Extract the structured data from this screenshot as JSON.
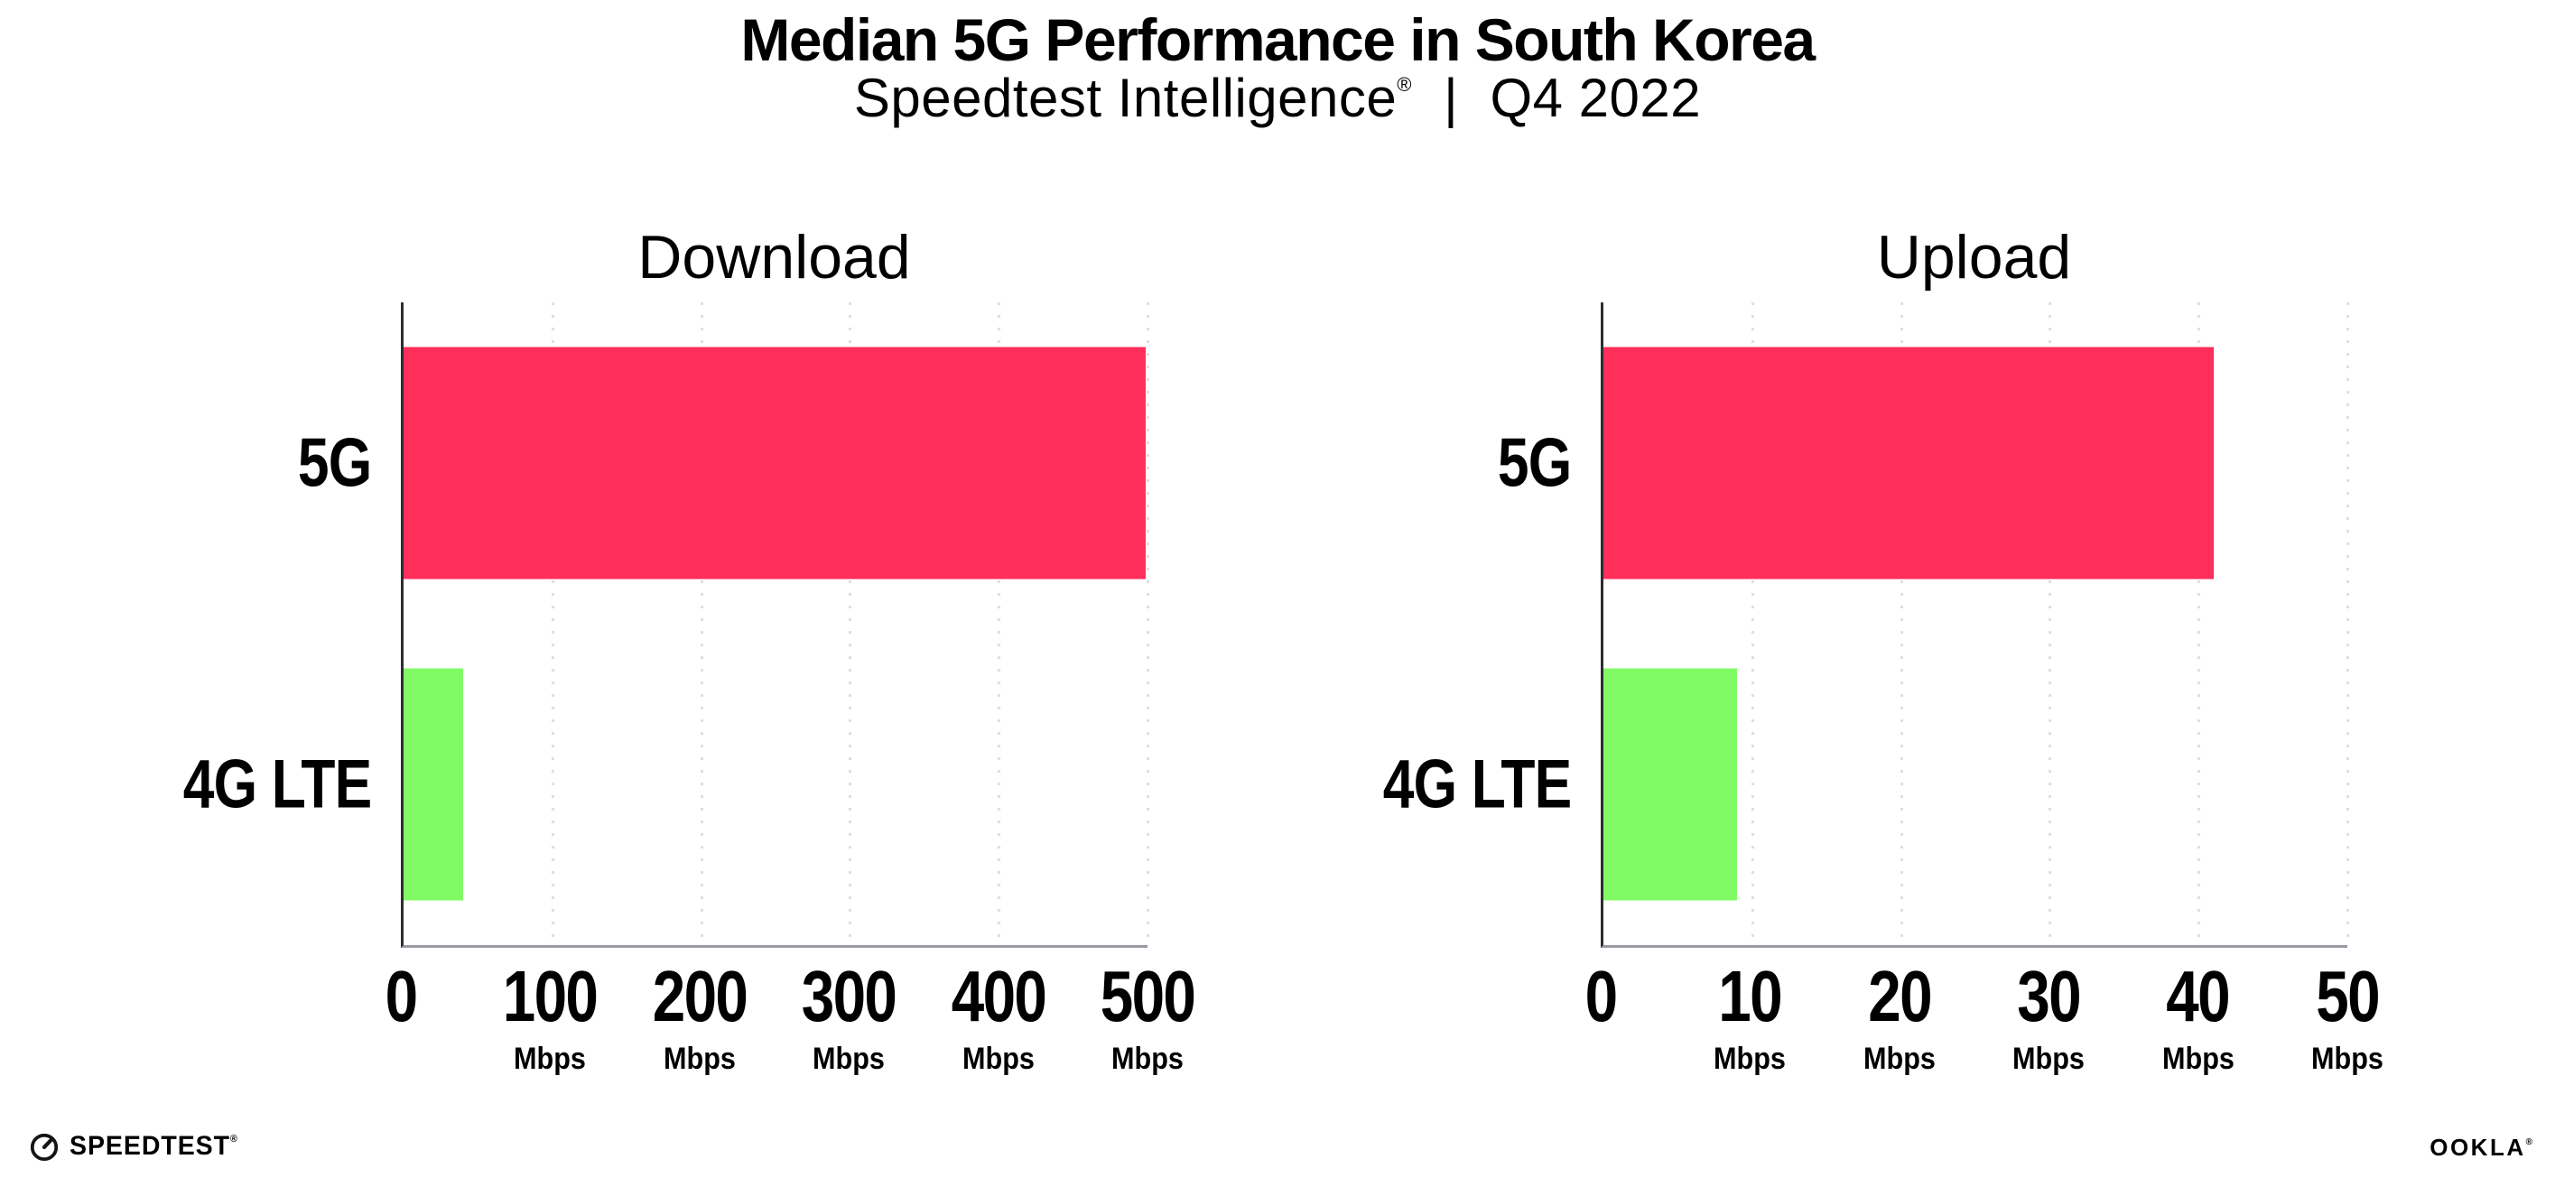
{
  "header": {
    "title": "Median 5G Performance in South Korea",
    "subtitle_brand": "Speedtest Intelligence",
    "subtitle_reg": "®",
    "subtitle_separator": "|",
    "subtitle_period": "Q4 2022"
  },
  "chart_data": [
    {
      "type": "bar",
      "orientation": "horizontal",
      "title": "Download",
      "categories": [
        "5G",
        "4G LTE"
      ],
      "values": [
        499,
        40
      ],
      "unit": "Mbps",
      "xlim": [
        0,
        500
      ],
      "xticks": [
        0,
        100,
        200,
        300,
        400,
        500
      ],
      "colors": [
        "#FF2E5B",
        "#80FB66"
      ],
      "grid": "dotted-vertical",
      "legend": "none"
    },
    {
      "type": "bar",
      "orientation": "horizontal",
      "title": "Upload",
      "categories": [
        "5G",
        "4G LTE"
      ],
      "values": [
        41,
        9
      ],
      "unit": "Mbps",
      "xlim": [
        0,
        50
      ],
      "xticks": [
        0,
        10,
        20,
        30,
        40,
        50
      ],
      "colors": [
        "#FF2E5B",
        "#80FB66"
      ],
      "grid": "dotted-vertical",
      "legend": "none"
    }
  ],
  "footer": {
    "speedtest_label": "SPEEDTEST",
    "speedtest_reg": "®",
    "speedtest_icon": "speedtest-gauge-icon",
    "ookla_label": "OOKLA",
    "ookla_reg": "®"
  },
  "colors": {
    "bar_5g": "#FF2E5B",
    "bar_4g_lte": "#80FB66",
    "gridline": "#DEDEEA",
    "y_axis": "#2E2E2E",
    "x_axis": "#9A9AA2",
    "text": "#000000",
    "background": "#FFFFFF"
  }
}
